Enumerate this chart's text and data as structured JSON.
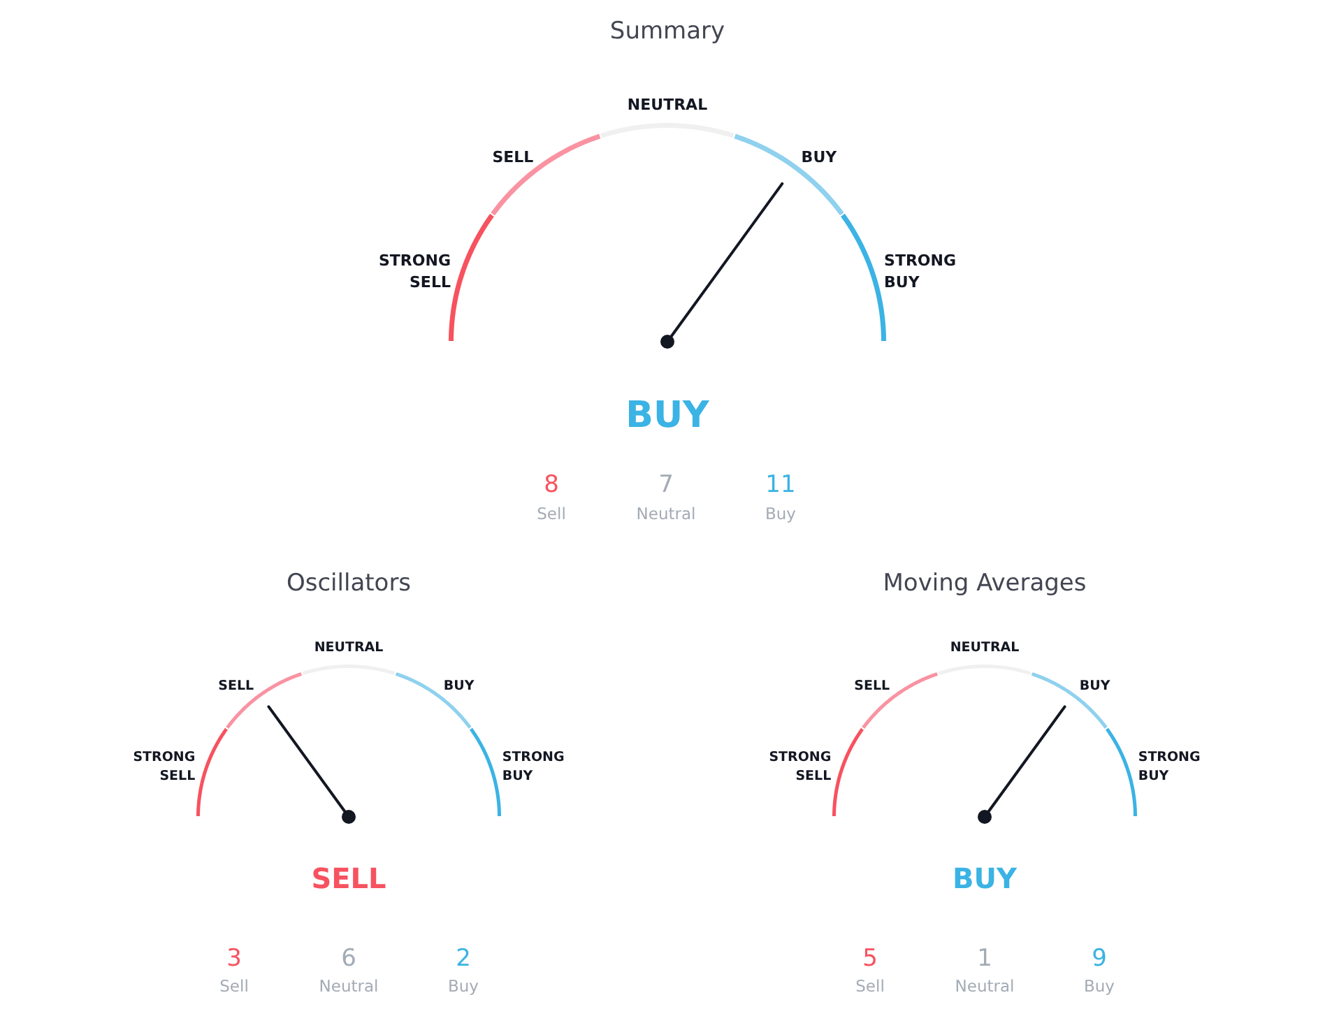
{
  "chart_data": [
    {
      "type": "donut",
      "title": "Summary",
      "categories": [
        "STRONG SELL",
        "SELL",
        "NEUTRAL",
        "BUY",
        "STRONG BUY"
      ],
      "values": [
        20,
        20,
        20,
        20,
        20
      ],
      "colors": [
        "#f7525f",
        "#f993a2",
        "#f0f0f0",
        "#8fd1ee",
        "#3bb3e4"
      ],
      "needle": "BUY",
      "annotations": [
        "BUY"
      ]
    },
    {
      "type": "other",
      "categories": [
        "Sell",
        "Neutral",
        "Buy"
      ],
      "values": [
        8,
        7,
        11
      ],
      "colors": [
        "#f7525f",
        "#a3abb5",
        "#3bb3e4"
      ],
      "data_labels": true
    },
    {
      "type": "donut",
      "title": "Oscillators",
      "categories": [
        "STRONG SELL",
        "SELL",
        "NEUTRAL",
        "BUY",
        "STRONG BUY"
      ],
      "values": [
        20,
        20,
        20,
        20,
        20
      ],
      "colors": [
        "#f7525f",
        "#f993a2",
        "#f0f0f0",
        "#8fd1ee",
        "#3bb3e4"
      ],
      "needle": "SELL",
      "annotations": [
        "SELL"
      ]
    },
    {
      "type": "other",
      "categories": [
        "Sell",
        "Neutral",
        "Buy"
      ],
      "values": [
        3,
        6,
        2
      ],
      "colors": [
        "#f7525f",
        "#a3abb5",
        "#3bb3e4"
      ],
      "data_labels": true
    },
    {
      "type": "donut",
      "title": "Moving Averages",
      "categories": [
        "STRONG SELL",
        "SELL",
        "NEUTRAL",
        "BUY",
        "STRONG BUY"
      ],
      "values": [
        20,
        20,
        20,
        20,
        20
      ],
      "colors": [
        "#f7525f",
        "#f993a2",
        "#f0f0f0",
        "#8fd1ee",
        "#3bb3e4"
      ],
      "needle": "BUY",
      "annotations": [
        "BUY"
      ]
    },
    {
      "type": "other",
      "categories": [
        "Sell",
        "Neutral",
        "Buy"
      ],
      "values": [
        5,
        1,
        9
      ],
      "colors": [
        "#f7525f",
        "#a3abb5",
        "#3bb3e4"
      ],
      "data_labels": true
    }
  ]
}
